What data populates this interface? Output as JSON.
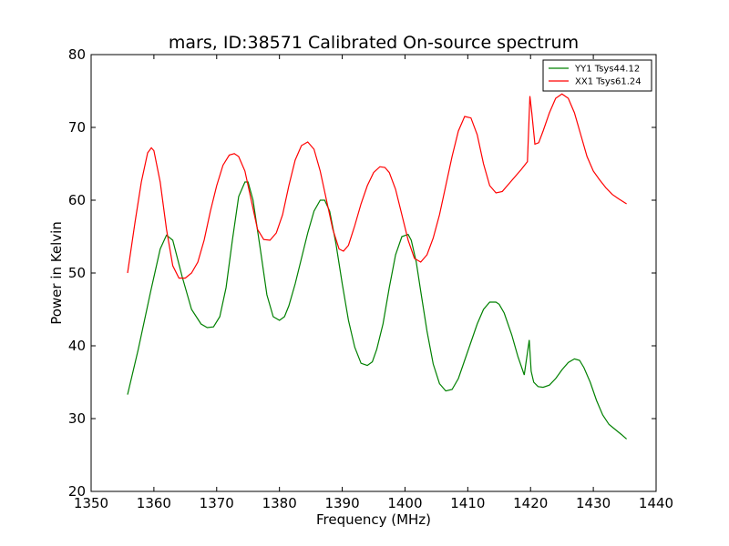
{
  "chart_data": {
    "type": "line",
    "title": "mars, ID:38571 Calibrated On-source spectrum",
    "xlabel": "Frequency (MHz)",
    "ylabel": "Power in Kelvin",
    "xlim": [
      1350,
      1440
    ],
    "ylim": [
      20,
      80
    ],
    "xticks": [
      1350,
      1360,
      1370,
      1380,
      1390,
      1400,
      1410,
      1420,
      1430,
      1440
    ],
    "yticks": [
      20,
      30,
      40,
      50,
      60,
      70,
      80
    ],
    "grid": false,
    "legend": "top-right",
    "series": [
      {
        "name": "YY1 Tsys44.12",
        "color": "#008000",
        "x": [
          1355.8,
          1357.5,
          1359.5,
          1361.0,
          1362.0,
          1363.0,
          1364.5,
          1366.0,
          1367.5,
          1368.5,
          1369.5,
          1370.5,
          1371.5,
          1372.5,
          1373.5,
          1374.5,
          1375.0,
          1375.8,
          1377.0,
          1378.0,
          1379.0,
          1380.0,
          1380.8,
          1381.5,
          1382.5,
          1383.5,
          1384.5,
          1385.5,
          1386.5,
          1387.2,
          1388.0,
          1389.0,
          1390.0,
          1391.0,
          1392.0,
          1393.0,
          1394.0,
          1394.8,
          1395.5,
          1396.5,
          1397.5,
          1398.5,
          1399.5,
          1400.5,
          1401.0,
          1401.8,
          1402.5,
          1403.5,
          1404.5,
          1405.5,
          1406.5,
          1407.5,
          1408.5,
          1409.5,
          1410.5,
          1411.5,
          1412.5,
          1413.5,
          1414.5,
          1415.0,
          1415.8,
          1417.0,
          1418.0,
          1419.0,
          1419.8,
          1420.1,
          1420.5,
          1421.2,
          1422.0,
          1423.0,
          1424.0,
          1425.0,
          1426.0,
          1427.0,
          1427.8,
          1428.5,
          1429.5,
          1430.5,
          1431.5,
          1432.5,
          1433.5,
          1434.5,
          1435.3
        ],
        "y": [
          33.3,
          39.5,
          47.5,
          53.3,
          55.2,
          54.5,
          49.5,
          45.0,
          43.0,
          42.5,
          42.6,
          44.0,
          48.0,
          54.5,
          60.5,
          62.5,
          62.5,
          60.0,
          53.0,
          47.0,
          44.0,
          43.5,
          44.0,
          45.5,
          48.5,
          52.0,
          55.5,
          58.5,
          60.0,
          60.0,
          58.5,
          54.0,
          48.5,
          43.5,
          39.8,
          37.6,
          37.3,
          37.8,
          39.5,
          43.0,
          48.0,
          52.5,
          55.0,
          55.3,
          54.5,
          51.5,
          47.5,
          42.0,
          37.5,
          34.8,
          33.8,
          34.0,
          35.5,
          38.0,
          40.5,
          43.0,
          45.0,
          46.0,
          46.0,
          45.7,
          44.5,
          41.5,
          38.5,
          36.0,
          40.8,
          36.5,
          35.0,
          34.4,
          34.3,
          34.6,
          35.5,
          36.7,
          37.7,
          38.2,
          38.0,
          37.0,
          35.0,
          32.5,
          30.5,
          29.2,
          28.5,
          27.8,
          27.2
        ]
      },
      {
        "name": "XX1 Tsys61.24",
        "color": "#ff0000",
        "x": [
          1355.8,
          1357.0,
          1358.0,
          1359.0,
          1359.6,
          1360.0,
          1361.0,
          1362.0,
          1363.0,
          1364.0,
          1365.0,
          1366.0,
          1367.0,
          1368.0,
          1369.0,
          1370.0,
          1371.0,
          1372.0,
          1372.8,
          1373.5,
          1374.5,
          1375.5,
          1376.5,
          1377.5,
          1378.5,
          1379.5,
          1380.5,
          1381.5,
          1382.5,
          1383.5,
          1384.5,
          1385.5,
          1386.5,
          1387.5,
          1388.5,
          1389.5,
          1390.2,
          1391.0,
          1392.0,
          1393.0,
          1394.0,
          1395.0,
          1396.0,
          1396.8,
          1397.5,
          1398.5,
          1399.5,
          1400.5,
          1401.5,
          1402.5,
          1403.5,
          1404.5,
          1405.5,
          1406.5,
          1407.5,
          1408.5,
          1409.5,
          1410.5,
          1411.5,
          1412.5,
          1413.5,
          1414.5,
          1415.5,
          1416.5,
          1417.5,
          1418.5,
          1419.5,
          1419.9,
          1420.2,
          1420.7,
          1421.3,
          1422.0,
          1423.0,
          1424.0,
          1425.0,
          1426.0,
          1427.0,
          1428.0,
          1429.0,
          1430.0,
          1431.0,
          1432.0,
          1433.0,
          1434.0,
          1435.3
        ],
        "y": [
          50.0,
          57.0,
          62.5,
          66.5,
          67.2,
          66.8,
          62.5,
          56.0,
          51.0,
          49.3,
          49.3,
          50.0,
          51.5,
          54.5,
          58.5,
          62.0,
          64.8,
          66.2,
          66.4,
          66.0,
          64.0,
          60.0,
          56.0,
          54.6,
          54.5,
          55.5,
          58.0,
          62.0,
          65.5,
          67.5,
          68.0,
          67.0,
          64.0,
          60.0,
          56.0,
          53.3,
          53.0,
          53.8,
          56.5,
          59.5,
          62.0,
          63.8,
          64.6,
          64.5,
          63.8,
          61.5,
          58.0,
          54.5,
          52.0,
          51.5,
          52.5,
          54.8,
          58.0,
          62.0,
          66.0,
          69.5,
          71.5,
          71.3,
          69.0,
          65.0,
          62.0,
          61.0,
          61.2,
          62.2,
          63.2,
          64.2,
          65.3,
          74.3,
          72.0,
          67.7,
          67.9,
          69.5,
          72.0,
          74.0,
          74.6,
          74.0,
          72.0,
          69.0,
          66.0,
          64.0,
          62.8,
          61.7,
          60.8,
          60.2,
          59.5
        ]
      }
    ]
  }
}
